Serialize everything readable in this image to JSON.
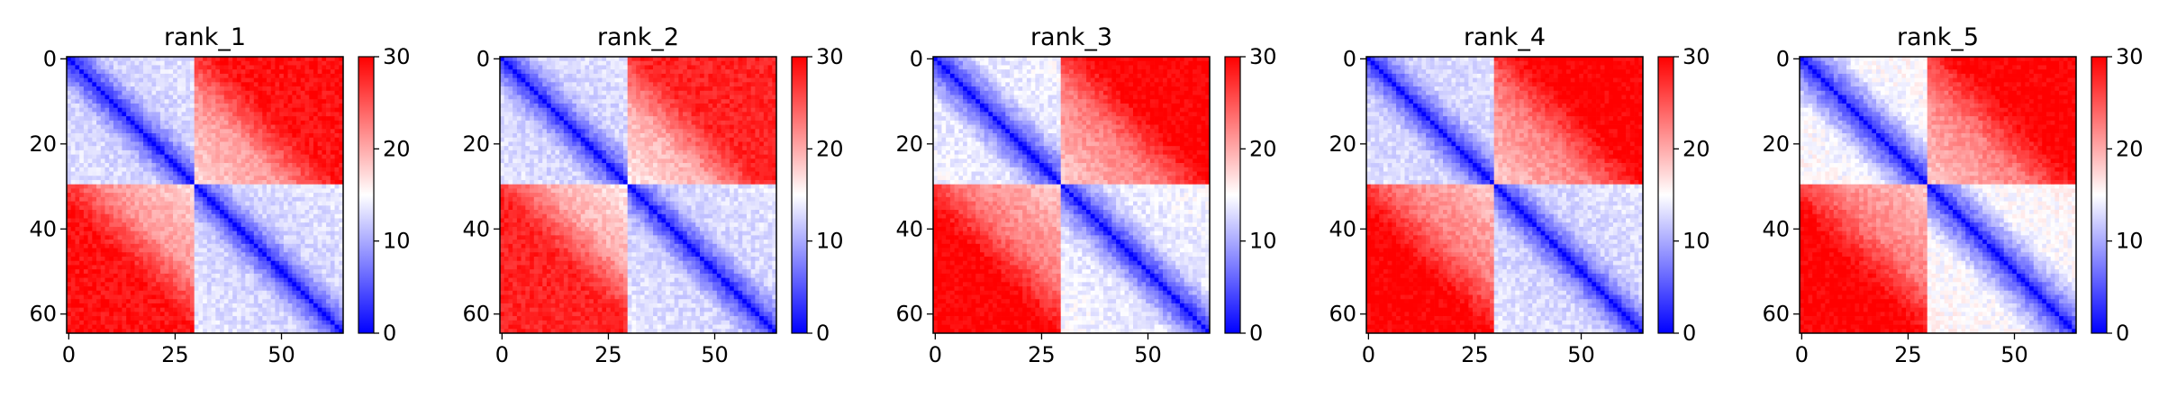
{
  "chart_data": [
    {
      "type": "heatmap",
      "title": "rank_1",
      "n": 65,
      "x_ticks": [
        0,
        25,
        50
      ],
      "y_ticks": [
        0,
        20,
        40,
        60
      ],
      "color_range": [
        0,
        30
      ],
      "colorbar_ticks": [
        0,
        10,
        20,
        30
      ],
      "colormap": [
        "#0000ff",
        "#ffffff",
        "#ff0000"
      ],
      "domain_boundaries": [
        0,
        30,
        65
      ],
      "in_domain_max_distance": 12,
      "between_domain_distance": 27
    },
    {
      "type": "heatmap",
      "title": "rank_2",
      "n": 65,
      "x_ticks": [
        0,
        25,
        50
      ],
      "y_ticks": [
        0,
        20,
        40,
        60
      ],
      "color_range": [
        0,
        30
      ],
      "colorbar_ticks": [
        0,
        10,
        20,
        30
      ],
      "colormap": [
        "#0000ff",
        "#ffffff",
        "#ff0000"
      ],
      "domain_boundaries": [
        0,
        30,
        65
      ],
      "in_domain_max_distance": 12,
      "between_domain_distance": 26
    },
    {
      "type": "heatmap",
      "title": "rank_3",
      "n": 65,
      "x_ticks": [
        0,
        25,
        50
      ],
      "y_ticks": [
        0,
        20,
        40,
        60
      ],
      "color_range": [
        0,
        30
      ],
      "colorbar_ticks": [
        0,
        10,
        20,
        30
      ],
      "colormap": [
        "#0000ff",
        "#ffffff",
        "#ff0000"
      ],
      "domain_boundaries": [
        0,
        30,
        65
      ],
      "in_domain_max_distance": 13,
      "between_domain_distance": 28
    },
    {
      "type": "heatmap",
      "title": "rank_4",
      "n": 65,
      "x_ticks": [
        0,
        25,
        50
      ],
      "y_ticks": [
        0,
        20,
        40,
        60
      ],
      "color_range": [
        0,
        30
      ],
      "colorbar_ticks": [
        0,
        10,
        20,
        30
      ],
      "colormap": [
        "#0000ff",
        "#ffffff",
        "#ff0000"
      ],
      "domain_boundaries": [
        0,
        30,
        65
      ],
      "in_domain_max_distance": 12,
      "between_domain_distance": 28
    },
    {
      "type": "heatmap",
      "title": "rank_5",
      "n": 65,
      "x_ticks": [
        0,
        25,
        50
      ],
      "y_ticks": [
        0,
        20,
        40,
        60
      ],
      "color_range": [
        0,
        30
      ],
      "colorbar_ticks": [
        0,
        10,
        20,
        30
      ],
      "colormap": [
        "#0000ff",
        "#ffffff",
        "#ff0000"
      ],
      "domain_boundaries": [
        0,
        30,
        65
      ],
      "in_domain_max_distance": 14,
      "between_domain_distance": 28
    }
  ]
}
